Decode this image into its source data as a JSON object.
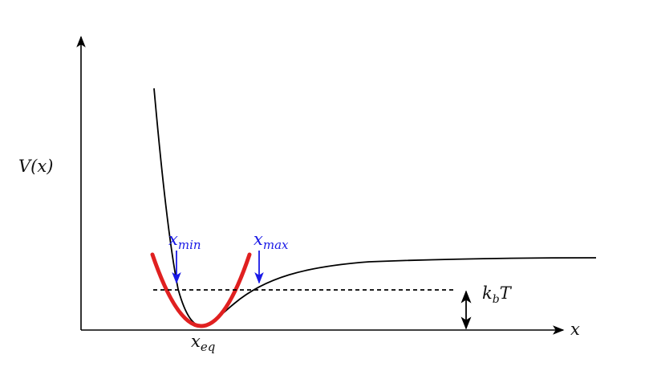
{
  "diagram": {
    "y_axis_label": "V(x)",
    "x_axis_label": "x",
    "equilibrium_label": {
      "base": "x",
      "sub": "eq"
    },
    "x_min_label": {
      "base": "x",
      "sub": "min"
    },
    "x_max_label": {
      "base": "x",
      "sub": "max"
    },
    "thermal_energy_label": {
      "base": "k",
      "sub": "b",
      "rest": "T"
    }
  },
  "colors": {
    "axis": "#000000",
    "potential_curve": "#000000",
    "harmonic_fit": "#e02020",
    "marker_arrows": "#1a1ae6",
    "kbt_level_line": "#000000"
  }
}
